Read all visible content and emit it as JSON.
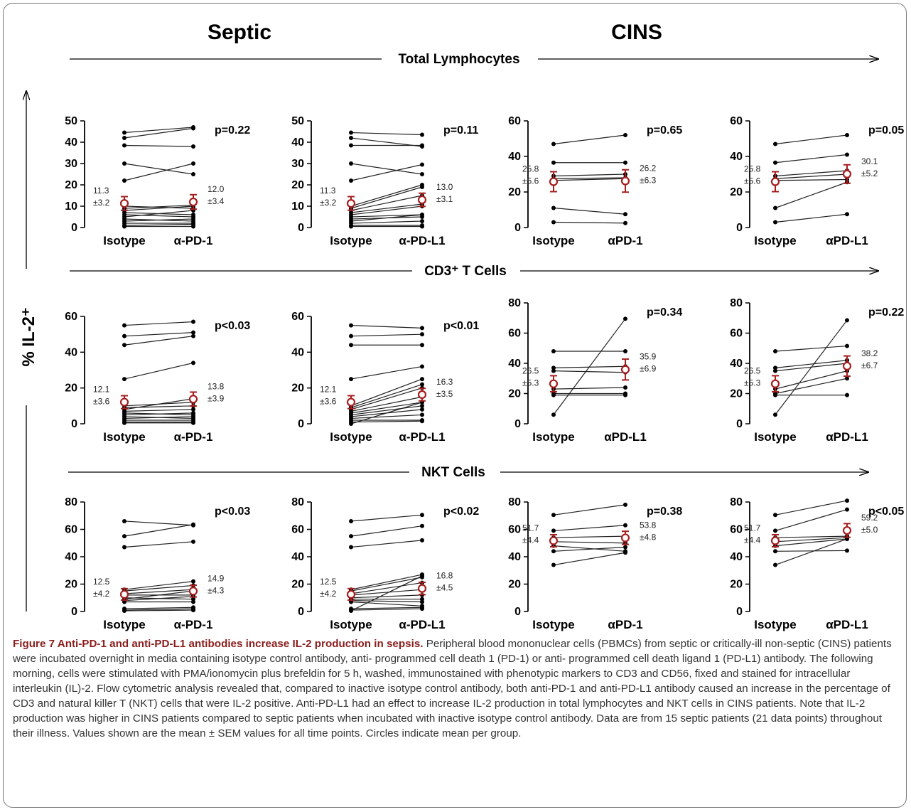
{
  "header": {
    "septic": "Septic",
    "cins": "CINS"
  },
  "sections": [
    "Total Lymphocytes",
    "CD3⁺ T Cells",
    "NKT Cells"
  ],
  "y_axis_label": "% IL-2⁺",
  "colors": {
    "mean_marker": "#a61e1e",
    "lines": "#222222",
    "caption_title": "#8a1d1d"
  },
  "caption": {
    "title": "Figure 7 Anti-PD-1 and anti-PD-L1 antibodies increase IL-2 production in sepsis.",
    "body": "Peripheral blood mononuclear cells (PBMCs) from septic or critically-ill non-septic (CINS) patients were incubated overnight in media containing isotype control antibody, anti- programmed cell death 1 (PD-1) or anti- programmed cell death ligand 1 (PD-L1) antibody. The following morning, cells were stimulated with PMA/ionomycin plus brefeldin for 5 h, washed, immunostained with phenotypic markers to CD3 and CD56, fixed and stained for intracellular interleukin (IL)-2. Flow cytometric analysis revealed that, compared to inactive isotype control antibody, both anti-PD-1 and anti-PD-L1 antibody caused an increase in the percentage of CD3 and natural killer T (NKT) cells that were IL-2 positive. Anti-PD-L1 had an effect to increase IL-2 production in total lymphocytes and NKT cells in CINS patients. Note that IL-2 production was higher in CINS patients compared to septic patients when incubated with inactive isotype control antibody. Data are from 15 septic patients (21 data points) throughout their illness. Values shown are the mean ± SEM values for all time points. Circles indicate mean per group."
  },
  "chart_data": [
    {
      "type": "scatter",
      "group": "Septic",
      "section": "Total Lymphocytes",
      "categories": [
        "Isotype",
        "α-PD-1"
      ],
      "ylim": [
        0,
        50
      ],
      "yticks": [
        0,
        10,
        20,
        30,
        40,
        50
      ],
      "p": "p=0.22",
      "mean": [
        {
          "value": 11.3,
          "sem": 3.2,
          "label": "11.3",
          "sem_label": "±3.2"
        },
        {
          "value": 12.0,
          "sem": 3.4,
          "label": "12.0",
          "sem_label": "±3.4"
        }
      ],
      "pairs": [
        [
          44.5,
          47
        ],
        [
          42,
          46.5
        ],
        [
          38.5,
          38
        ],
        [
          30,
          25
        ],
        [
          22,
          30
        ],
        [
          10,
          9
        ],
        [
          9,
          10.5
        ],
        [
          8,
          10
        ],
        [
          7,
          6
        ],
        [
          6,
          5
        ],
        [
          5,
          8
        ],
        [
          4,
          3
        ],
        [
          3,
          4
        ],
        [
          2,
          2
        ],
        [
          1,
          1.5
        ],
        [
          0.5,
          0.5
        ]
      ]
    },
    {
      "type": "scatter",
      "group": "Septic",
      "section": "Total Lymphocytes",
      "categories": [
        "Isotype",
        "α-PD-L1"
      ],
      "ylim": [
        0,
        50
      ],
      "yticks": [
        0,
        10,
        20,
        30,
        40,
        50
      ],
      "p": "p=0.11",
      "mean": [
        {
          "value": 11.3,
          "sem": 3.2,
          "label": "11.3",
          "sem_label": "±3.2"
        },
        {
          "value": 13.0,
          "sem": 3.1,
          "label": "13.0",
          "sem_label": "±3.1"
        }
      ],
      "pairs": [
        [
          44.5,
          43.5
        ],
        [
          42,
          38
        ],
        [
          38.5,
          38.5
        ],
        [
          30,
          25
        ],
        [
          22,
          29.5
        ],
        [
          10,
          20
        ],
        [
          9,
          19
        ],
        [
          8,
          15
        ],
        [
          7,
          11
        ],
        [
          6,
          10
        ],
        [
          5,
          6
        ],
        [
          4,
          5
        ],
        [
          3,
          6
        ],
        [
          2,
          3
        ],
        [
          1,
          1
        ],
        [
          0.5,
          0.5
        ]
      ]
    },
    {
      "type": "scatter",
      "group": "CINS",
      "section": "Total Lymphocytes",
      "categories": [
        "Isotype",
        "αPD-1"
      ],
      "ylim": [
        0,
        60
      ],
      "yticks": [
        0,
        20,
        40,
        60
      ],
      "p": "p=0.65",
      "mean": [
        {
          "value": 25.8,
          "sem": 5.6,
          "label": "25.8",
          "sem_label": "±5.6"
        },
        {
          "value": 26.2,
          "sem": 6.3,
          "label": "26.2",
          "sem_label": "±6.3"
        }
      ],
      "pairs": [
        [
          47,
          52
        ],
        [
          36.5,
          36.5
        ],
        [
          29,
          30
        ],
        [
          27.5,
          28
        ],
        [
          26.5,
          27.5
        ],
        [
          11,
          7.5
        ],
        [
          3,
          2.5
        ]
      ]
    },
    {
      "type": "scatter",
      "group": "CINS",
      "section": "Total Lymphocytes",
      "categories": [
        "Isotype",
        "αPD-L1"
      ],
      "ylim": [
        0,
        60
      ],
      "yticks": [
        0,
        20,
        40,
        60
      ],
      "p": "p=0.05",
      "mean": [
        {
          "value": 25.8,
          "sem": 5.6,
          "label": "25.8",
          "sem_label": "±5.6"
        },
        {
          "value": 30.1,
          "sem": 5.2,
          "label": "30.1",
          "sem_label": "±5.2"
        }
      ],
      "pairs": [
        [
          47,
          52
        ],
        [
          36.5,
          41
        ],
        [
          29,
          32
        ],
        [
          27.5,
          30
        ],
        [
          26.5,
          27
        ],
        [
          11,
          25.5
        ],
        [
          3,
          7.5
        ]
      ]
    },
    {
      "type": "scatter",
      "group": "Septic",
      "section": "CD3⁺ T Cells",
      "categories": [
        "Isotype",
        "α-PD-1"
      ],
      "ylim": [
        0,
        60
      ],
      "yticks": [
        0,
        20,
        40,
        60
      ],
      "p": "p<0.03",
      "mean": [
        {
          "value": 12.1,
          "sem": 3.6,
          "label": "12.1",
          "sem_label": "±3.6"
        },
        {
          "value": 13.8,
          "sem": 3.9,
          "label": "13.8",
          "sem_label": "±3.9"
        }
      ],
      "pairs": [
        [
          55,
          57
        ],
        [
          49,
          51
        ],
        [
          44,
          49
        ],
        [
          25,
          34
        ],
        [
          10,
          12
        ],
        [
          9,
          10
        ],
        [
          8,
          14
        ],
        [
          7,
          8
        ],
        [
          6,
          5
        ],
        [
          5,
          6
        ],
        [
          4,
          3
        ],
        [
          3,
          4
        ],
        [
          2,
          2
        ],
        [
          1,
          1
        ],
        [
          0.5,
          0.5
        ]
      ]
    },
    {
      "type": "scatter",
      "group": "Septic",
      "section": "CD3⁺ T Cells",
      "categories": [
        "Isotype",
        "α-PD-L1"
      ],
      "ylim": [
        0,
        60
      ],
      "yticks": [
        0,
        20,
        40,
        60
      ],
      "p": "p<0.01",
      "mean": [
        {
          "value": 12.1,
          "sem": 3.6,
          "label": "12.1",
          "sem_label": "±3.6"
        },
        {
          "value": 16.3,
          "sem": 3.5,
          "label": "16.3",
          "sem_label": "±3.5"
        }
      ],
      "pairs": [
        [
          55,
          53.5
        ],
        [
          49,
          50
        ],
        [
          44,
          44
        ],
        [
          25,
          32
        ],
        [
          10,
          25
        ],
        [
          9,
          22
        ],
        [
          8,
          20
        ],
        [
          7,
          15
        ],
        [
          6,
          12
        ],
        [
          5,
          10
        ],
        [
          4,
          8
        ],
        [
          3,
          5
        ],
        [
          2,
          2
        ],
        [
          1,
          1.5
        ],
        [
          0,
          12
        ]
      ]
    },
    {
      "type": "scatter",
      "group": "CINS",
      "section": "CD3⁺ T Cells",
      "categories": [
        "Isotype",
        "αPD-L1"
      ],
      "ylim": [
        0,
        80
      ],
      "yticks": [
        0,
        20,
        40,
        60,
        80
      ],
      "p": "p=0.34",
      "mean": [
        {
          "value": 26.5,
          "sem": 5.3,
          "label": "26.5",
          "sem_label": "±5.3"
        },
        {
          "value": 35.9,
          "sem": 6.9,
          "label": "35.9",
          "sem_label": "±6.9"
        }
      ],
      "pairs": [
        [
          48,
          48
        ],
        [
          37,
          38
        ],
        [
          35,
          34
        ],
        [
          23,
          24
        ],
        [
          20,
          20
        ],
        [
          19,
          19
        ],
        [
          6,
          69.5
        ]
      ]
    },
    {
      "type": "scatter",
      "group": "CINS",
      "section": "CD3⁺ T Cells",
      "categories": [
        "Isotype",
        "αPD-L1"
      ],
      "ylim": [
        0,
        80
      ],
      "yticks": [
        0,
        20,
        40,
        60,
        80
      ],
      "p": "p=0.22",
      "mean": [
        {
          "value": 26.5,
          "sem": 5.3,
          "label": "26.5",
          "sem_label": "±5.3"
        },
        {
          "value": 38.2,
          "sem": 6.7,
          "label": "38.2",
          "sem_label": "±6.7"
        }
      ],
      "pairs": [
        [
          48,
          51.5
        ],
        [
          37,
          42
        ],
        [
          35,
          40
        ],
        [
          23,
          35
        ],
        [
          20,
          30
        ],
        [
          19,
          19
        ],
        [
          6,
          68.5
        ]
      ]
    },
    {
      "type": "scatter",
      "group": "Septic",
      "section": "NKT Cells",
      "categories": [
        "Isotype",
        "α-PD-1"
      ],
      "ylim": [
        0,
        80
      ],
      "yticks": [
        0,
        20,
        40,
        60,
        80
      ],
      "p": "p<0.03",
      "mean": [
        {
          "value": 12.5,
          "sem": 4.2,
          "label": "12.5",
          "sem_label": "±4.2"
        },
        {
          "value": 14.9,
          "sem": 4.3,
          "label": "14.9",
          "sem_label": "±4.3"
        }
      ],
      "pairs": [
        [
          66,
          63
        ],
        [
          55,
          63.5
        ],
        [
          47,
          51
        ],
        [
          16,
          22
        ],
        [
          15,
          19
        ],
        [
          13,
          16
        ],
        [
          12,
          12
        ],
        [
          10,
          9
        ],
        [
          9,
          15
        ],
        [
          8,
          11
        ],
        [
          7,
          7
        ],
        [
          2,
          3
        ],
        [
          1,
          2
        ],
        [
          0.5,
          1
        ]
      ]
    },
    {
      "type": "scatter",
      "group": "Septic",
      "section": "NKT Cells",
      "categories": [
        "Isotype",
        "α-PD-L1"
      ],
      "ylim": [
        0,
        80
      ],
      "yticks": [
        0,
        20,
        40,
        60,
        80
      ],
      "p": "p<0.02",
      "mean": [
        {
          "value": 12.5,
          "sem": 4.2,
          "label": "12.5",
          "sem_label": "±4.2"
        },
        {
          "value": 16.8,
          "sem": 4.5,
          "label": "16.8",
          "sem_label": "±4.5"
        }
      ],
      "pairs": [
        [
          66,
          70.5
        ],
        [
          55,
          62.5
        ],
        [
          47,
          52
        ],
        [
          16,
          27
        ],
        [
          15,
          25
        ],
        [
          13,
          21
        ],
        [
          12,
          16
        ],
        [
          10,
          12
        ],
        [
          9,
          9
        ],
        [
          8,
          7
        ],
        [
          7,
          4
        ],
        [
          2,
          3
        ],
        [
          1,
          2
        ],
        [
          0.5,
          26
        ]
      ]
    },
    {
      "type": "scatter",
      "group": "CINS",
      "section": "NKT Cells",
      "categories": [
        "Isotype",
        "αPD-1"
      ],
      "ylim": [
        0,
        80
      ],
      "yticks": [
        0,
        20,
        40,
        60,
        80
      ],
      "p": "p=0.38",
      "mean": [
        {
          "value": 51.7,
          "sem": 4.4,
          "label": "51.7",
          "sem_label": "±4.4"
        },
        {
          "value": 53.8,
          "sem": 4.8,
          "label": "53.8",
          "sem_label": "±4.8"
        }
      ],
      "pairs": [
        [
          70.5,
          78
        ],
        [
          59,
          63
        ],
        [
          54,
          55
        ],
        [
          51,
          50
        ],
        [
          48,
          44
        ],
        [
          44,
          47
        ],
        [
          34,
          43
        ]
      ]
    },
    {
      "type": "scatter",
      "group": "CINS",
      "section": "NKT Cells",
      "categories": [
        "Isotype",
        "αPD-L1"
      ],
      "ylim": [
        0,
        80
      ],
      "yticks": [
        0,
        20,
        40,
        60,
        80
      ],
      "p": "p<0.05",
      "mean": [
        {
          "value": 51.7,
          "sem": 4.4,
          "label": "51.7",
          "sem_label": "±4.4"
        },
        {
          "value": 59.2,
          "sem": 5.0,
          "label": "59.2",
          "sem_label": "±5.0"
        }
      ],
      "pairs": [
        [
          70.5,
          81
        ],
        [
          59,
          74.5
        ],
        [
          54,
          55
        ],
        [
          51,
          54
        ],
        [
          48,
          53
        ],
        [
          44,
          44.5
        ],
        [
          34,
          53
        ]
      ]
    }
  ]
}
